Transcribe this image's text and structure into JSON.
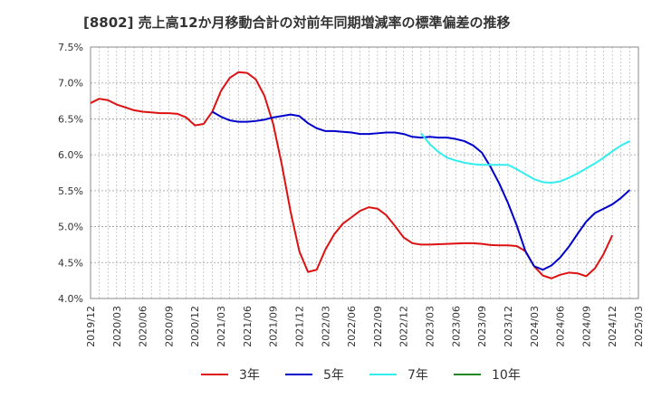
{
  "chart_data": {
    "type": "line",
    "title": "[8802]  売上高12か月移動合計の対前年同期増減率の標準偏差の推移",
    "xlabel": "",
    "ylabel": "",
    "ylim": [
      4.0,
      7.5
    ],
    "y_ticks": [
      "4.0%",
      "4.5%",
      "5.0%",
      "5.5%",
      "6.0%",
      "6.5%",
      "7.0%",
      "7.5%"
    ],
    "x_ticks": [
      "2019/12",
      "2020/03",
      "2020/06",
      "2020/09",
      "2020/12",
      "2021/03",
      "2021/06",
      "2021/09",
      "2021/12",
      "2022/03",
      "2022/06",
      "2022/09",
      "2022/12",
      "2023/03",
      "2023/06",
      "2023/09",
      "2023/12",
      "2024/03",
      "2024/06",
      "2024/09",
      "2024/12",
      "2025/03"
    ],
    "grid": true,
    "legend_position": "bottom",
    "series": [
      {
        "name": "3年",
        "color": "#dd1111",
        "start": "2019/12",
        "values": [
          6.72,
          6.78,
          6.76,
          6.7,
          6.66,
          6.62,
          6.6,
          6.59,
          6.58,
          6.58,
          6.57,
          6.52,
          6.41,
          6.43,
          6.6,
          6.89,
          7.07,
          7.15,
          7.14,
          7.05,
          6.82,
          6.43,
          5.86,
          5.21,
          4.66,
          4.37,
          4.4,
          4.68,
          4.89,
          5.04,
          5.13,
          5.22,
          5.27,
          5.25,
          5.16,
          5.01,
          4.85,
          4.77,
          4.75,
          4.75,
          4.755,
          4.76,
          4.765,
          4.77,
          4.77,
          4.76,
          4.745,
          4.74,
          4.74,
          4.73,
          4.66,
          4.45,
          4.32,
          4.28,
          4.33,
          4.36,
          4.35,
          4.31,
          4.42,
          4.62,
          4.88
        ]
      },
      {
        "name": "5年",
        "color": "#0000cc",
        "start": "2021/02",
        "values": [
          6.6,
          6.53,
          6.48,
          6.46,
          6.46,
          6.47,
          6.49,
          6.52,
          6.54,
          6.56,
          6.54,
          6.44,
          6.37,
          6.33,
          6.33,
          6.32,
          6.31,
          6.29,
          6.29,
          6.3,
          6.31,
          6.31,
          6.29,
          6.25,
          6.24,
          6.25,
          6.24,
          6.24,
          6.22,
          6.19,
          6.13,
          6.03,
          5.83,
          5.6,
          5.33,
          5.02,
          4.66,
          4.45,
          4.4,
          4.46,
          4.57,
          4.72,
          4.9,
          5.07,
          5.19,
          5.25,
          5.31,
          5.4,
          5.51
        ]
      },
      {
        "name": "7年",
        "color": "#33eeee",
        "start": "2023/02",
        "values": [
          6.3,
          6.15,
          6.04,
          5.96,
          5.92,
          5.89,
          5.87,
          5.86,
          5.86,
          5.86,
          5.86,
          5.8,
          5.73,
          5.66,
          5.62,
          5.61,
          5.63,
          5.68,
          5.74,
          5.81,
          5.88,
          5.96,
          6.05,
          6.13,
          6.19
        ]
      },
      {
        "name": "10年",
        "color": "#228822",
        "start": "",
        "values": []
      }
    ]
  }
}
